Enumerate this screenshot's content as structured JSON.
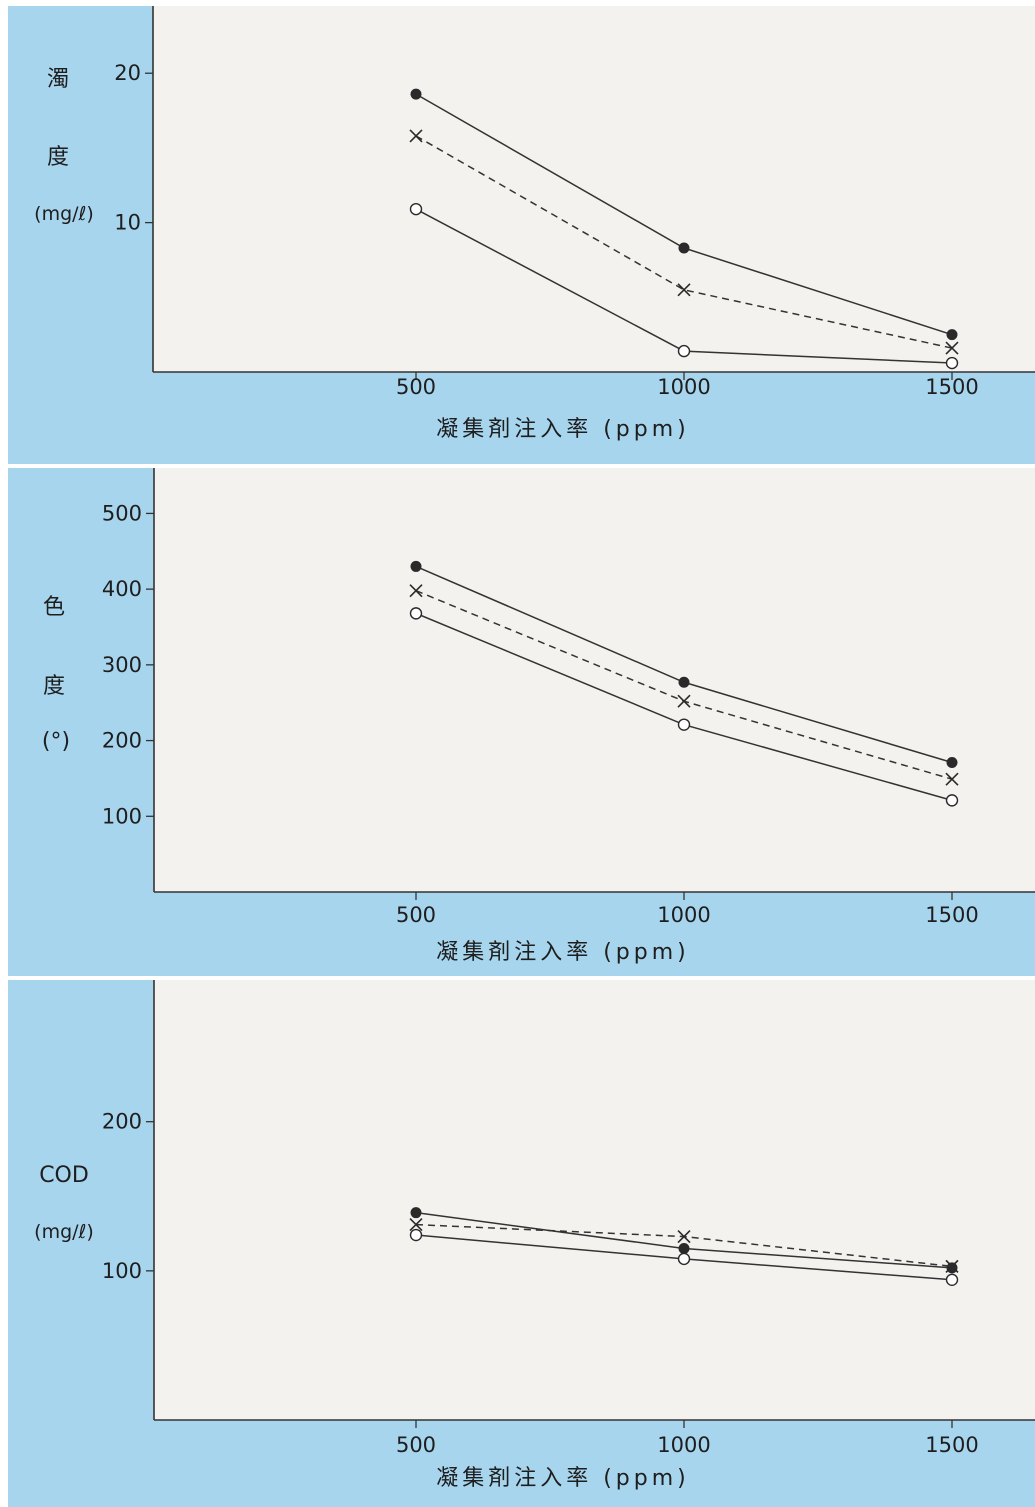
{
  "chart_data": [
    {
      "type": "line",
      "ylabel_lines": [
        "濁",
        "度",
        "(mg/ℓ)"
      ],
      "xlabel": "凝集剤注入率 (ppm)",
      "x": [
        500,
        1000,
        1500
      ],
      "xlim": [
        0,
        1500
      ],
      "yticks": [
        10,
        20
      ],
      "ylim": [
        0,
        24.5
      ],
      "series": [
        {
          "marker": "filled-circle",
          "line": "solid",
          "values": [
            18.6,
            8.3,
            2.5
          ]
        },
        {
          "marker": "cross",
          "line": "dashed",
          "values": [
            15.8,
            5.5,
            1.6
          ]
        },
        {
          "marker": "open-circle",
          "line": "solid",
          "values": [
            10.9,
            1.4,
            0.6
          ]
        }
      ]
    },
    {
      "type": "line",
      "ylabel_lines": [
        "色",
        "度",
        "(°)"
      ],
      "xlabel": "凝集剤注入率 (ppm)",
      "x": [
        500,
        1000,
        1500
      ],
      "xlim": [
        0,
        1500
      ],
      "yticks": [
        100,
        200,
        300,
        400,
        500
      ],
      "ylim": [
        0,
        560
      ],
      "series": [
        {
          "marker": "filled-circle",
          "line": "solid",
          "values": [
            430,
            277,
            171
          ]
        },
        {
          "marker": "cross",
          "line": "dashed",
          "values": [
            398,
            252,
            149
          ]
        },
        {
          "marker": "open-circle",
          "line": "solid",
          "values": [
            368,
            221,
            121
          ]
        }
      ]
    },
    {
      "type": "line",
      "ylabel_lines": [
        "COD",
        "(mg/ℓ)"
      ],
      "xlabel": "凝集剤注入率 (ppm)",
      "x": [
        500,
        1000,
        1500
      ],
      "xlim": [
        0,
        1500
      ],
      "yticks": [
        100,
        200
      ],
      "ylim": [
        0,
        295
      ],
      "series": [
        {
          "marker": "filled-circle",
          "line": "solid",
          "values": [
            139,
            115,
            102
          ]
        },
        {
          "marker": "cross",
          "line": "dashed",
          "values": [
            131,
            123,
            103
          ]
        },
        {
          "marker": "open-circle",
          "line": "solid",
          "values": [
            124,
            108,
            94
          ]
        }
      ]
    }
  ]
}
